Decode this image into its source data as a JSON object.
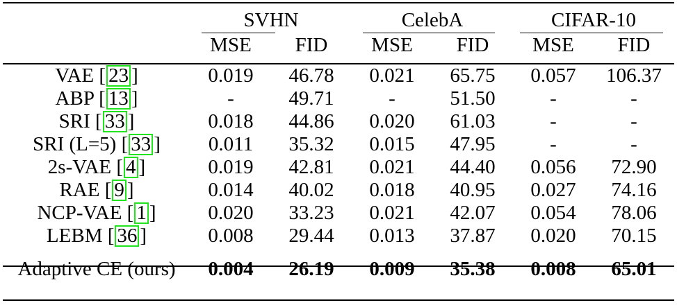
{
  "datasets": [
    "SVHN",
    "CelebA",
    "CIFAR-10"
  ],
  "metrics": [
    "MSE",
    "FID",
    "MSE",
    "FID",
    "MSE",
    "FID"
  ],
  "rows": [
    {
      "name": "VAE",
      "ref": "23",
      "values": [
        "0.019",
        "46.78",
        "0.021",
        "65.75",
        "0.057",
        "106.37"
      ]
    },
    {
      "name": "ABP",
      "ref": "13",
      "values": [
        "-",
        "49.71",
        "-",
        "51.50",
        "-",
        "-"
      ]
    },
    {
      "name": "SRI",
      "ref": "33",
      "values": [
        "0.018",
        "44.86",
        "0.020",
        "61.03",
        "-",
        "-"
      ]
    },
    {
      "name": "SRI (L=5)",
      "ref": "33",
      "values": [
        "0.011",
        "35.32",
        "0.015",
        "47.95",
        "-",
        "-"
      ]
    },
    {
      "name": "2s-VAE",
      "ref": "4",
      "values": [
        "0.019",
        "42.81",
        "0.021",
        "44.40",
        "0.056",
        "72.90"
      ]
    },
    {
      "name": "RAE",
      "ref": "9",
      "values": [
        "0.014",
        "40.02",
        "0.018",
        "40.95",
        "0.027",
        "74.16"
      ]
    },
    {
      "name": "NCP-VAE",
      "ref": "1",
      "values": [
        "0.020",
        "33.23",
        "0.021",
        "42.07",
        "0.054",
        "78.06"
      ]
    },
    {
      "name": "LEBM",
      "ref": "36",
      "values": [
        "0.008",
        "29.44",
        "0.013",
        "37.87",
        "0.020",
        "70.15"
      ]
    }
  ],
  "ours": {
    "name": "Adaptive CE (ours)",
    "values": [
      "0.004",
      "26.19",
      "0.009",
      "35.38",
      "0.008",
      "65.01"
    ]
  },
  "colors": {
    "citation_box": "#21e41d",
    "text": "#000000",
    "background": "#ffffff"
  }
}
